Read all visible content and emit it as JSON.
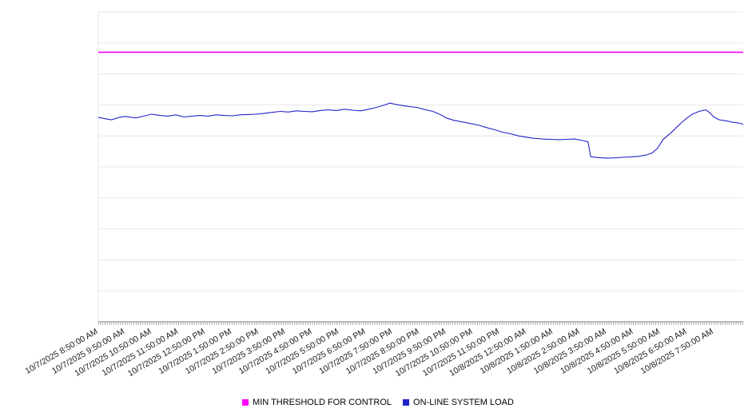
{
  "chart_data": {
    "type": "line",
    "title": "",
    "xlabel": "",
    "ylabel": "",
    "xlim": [
      0,
      24.1
    ],
    "ylim": [
      0,
      100
    ],
    "grid": "horizontal",
    "grid_step": 10,
    "y_tick_labels_shown": false,
    "legend_position": "bottom-center",
    "x_unit": "hours since first sample",
    "x_tick_labels": [
      "10/7/2025 8:50:00 AM",
      "10/7/2025 9:50:00 AM",
      "10/7/2025 10:50:00 AM",
      "10/7/2025 11:50:00 AM",
      "10/7/2025 12:50:00 PM",
      "10/7/2025 1:50:00 PM",
      "10/7/2025 2:50:00 PM",
      "10/7/2025 3:50:00 PM",
      "10/7/2025 4:50:00 PM",
      "10/7/2025 5:50:00 PM",
      "10/7/2025 6:50:00 PM",
      "10/7/2025 7:50:00 PM",
      "10/7/2025 8:50:00 PM",
      "10/7/2025 9:50:00 PM",
      "10/7/2025 10:50:00 PM",
      "10/7/2025 11:50:00 PM",
      "10/8/2025 12:50:00 AM",
      "10/8/2025 1:50:00 AM",
      "10/8/2025 2:50:00 AM",
      "10/8/2025 3:50:00 AM",
      "10/8/2025 4:50:00 AM",
      "10/8/2025 5:50:00 AM",
      "10/8/2025 6:50:00 AM",
      "10/8/2025 7:50:00 AM"
    ],
    "colors": {
      "grid": "#e8e8e8",
      "axis": "#808080",
      "tick": "#909090",
      "label": "#1a1a1a",
      "background": "#ffffff"
    },
    "series": [
      {
        "name": "MIN THRESHOLD FOR CONTROL",
        "color": "#ff00ff",
        "type": "constant",
        "value": 87
      },
      {
        "name": "ON-LINE SYSTEM LOAD",
        "color": "#2222cc",
        "type": "points",
        "points": [
          [
            0.0,
            66.0
          ],
          [
            0.3,
            65.5
          ],
          [
            0.5,
            65.2
          ],
          [
            0.8,
            66.0
          ],
          [
            1.0,
            66.3
          ],
          [
            1.4,
            65.8
          ],
          [
            1.7,
            66.4
          ],
          [
            2.0,
            67.0
          ],
          [
            2.3,
            66.6
          ],
          [
            2.6,
            66.4
          ],
          [
            2.9,
            66.8
          ],
          [
            3.2,
            66.1
          ],
          [
            3.5,
            66.4
          ],
          [
            3.8,
            66.6
          ],
          [
            4.1,
            66.4
          ],
          [
            4.4,
            66.8
          ],
          [
            4.7,
            66.6
          ],
          [
            5.0,
            66.5
          ],
          [
            5.3,
            66.8
          ],
          [
            5.6,
            66.9
          ],
          [
            5.9,
            67.0
          ],
          [
            6.2,
            67.3
          ],
          [
            6.5,
            67.6
          ],
          [
            6.8,
            67.9
          ],
          [
            7.1,
            67.7
          ],
          [
            7.4,
            68.1
          ],
          [
            7.7,
            67.9
          ],
          [
            8.0,
            67.8
          ],
          [
            8.3,
            68.2
          ],
          [
            8.6,
            68.4
          ],
          [
            8.9,
            68.2
          ],
          [
            9.2,
            68.6
          ],
          [
            9.5,
            68.3
          ],
          [
            9.8,
            68.1
          ],
          [
            10.1,
            68.6
          ],
          [
            10.4,
            69.2
          ],
          [
            10.7,
            70.0
          ],
          [
            10.9,
            70.6
          ],
          [
            11.1,
            70.2
          ],
          [
            11.3,
            69.9
          ],
          [
            11.6,
            69.5
          ],
          [
            11.9,
            69.2
          ],
          [
            12.2,
            68.5
          ],
          [
            12.5,
            67.9
          ],
          [
            12.8,
            66.8
          ],
          [
            13.0,
            65.8
          ],
          [
            13.3,
            65.0
          ],
          [
            13.6,
            64.5
          ],
          [
            13.9,
            64.0
          ],
          [
            14.2,
            63.5
          ],
          [
            14.5,
            62.7
          ],
          [
            14.8,
            62.0
          ],
          [
            15.1,
            61.2
          ],
          [
            15.4,
            60.7
          ],
          [
            15.7,
            60.0
          ],
          [
            16.0,
            59.6
          ],
          [
            16.3,
            59.2
          ],
          [
            16.6,
            59.0
          ],
          [
            16.9,
            58.9
          ],
          [
            17.2,
            58.8
          ],
          [
            17.5,
            58.9
          ],
          [
            17.8,
            59.0
          ],
          [
            18.1,
            58.5
          ],
          [
            18.3,
            58.1
          ],
          [
            18.4,
            53.3
          ],
          [
            18.7,
            53.0
          ],
          [
            19.0,
            52.8
          ],
          [
            19.3,
            52.9
          ],
          [
            19.6,
            53.1
          ],
          [
            19.9,
            53.2
          ],
          [
            20.2,
            53.4
          ],
          [
            20.5,
            53.9
          ],
          [
            20.7,
            54.5
          ],
          [
            20.9,
            56.0
          ],
          [
            21.1,
            58.8
          ],
          [
            21.4,
            61.0
          ],
          [
            21.6,
            62.7
          ],
          [
            21.8,
            64.3
          ],
          [
            22.0,
            65.8
          ],
          [
            22.2,
            67.0
          ],
          [
            22.45,
            67.9
          ],
          [
            22.7,
            68.4
          ],
          [
            22.85,
            67.5
          ],
          [
            23.0,
            66.1
          ],
          [
            23.2,
            65.2
          ],
          [
            23.5,
            64.8
          ],
          [
            23.7,
            64.4
          ],
          [
            23.9,
            64.2
          ],
          [
            24.1,
            63.8
          ]
        ]
      }
    ]
  }
}
